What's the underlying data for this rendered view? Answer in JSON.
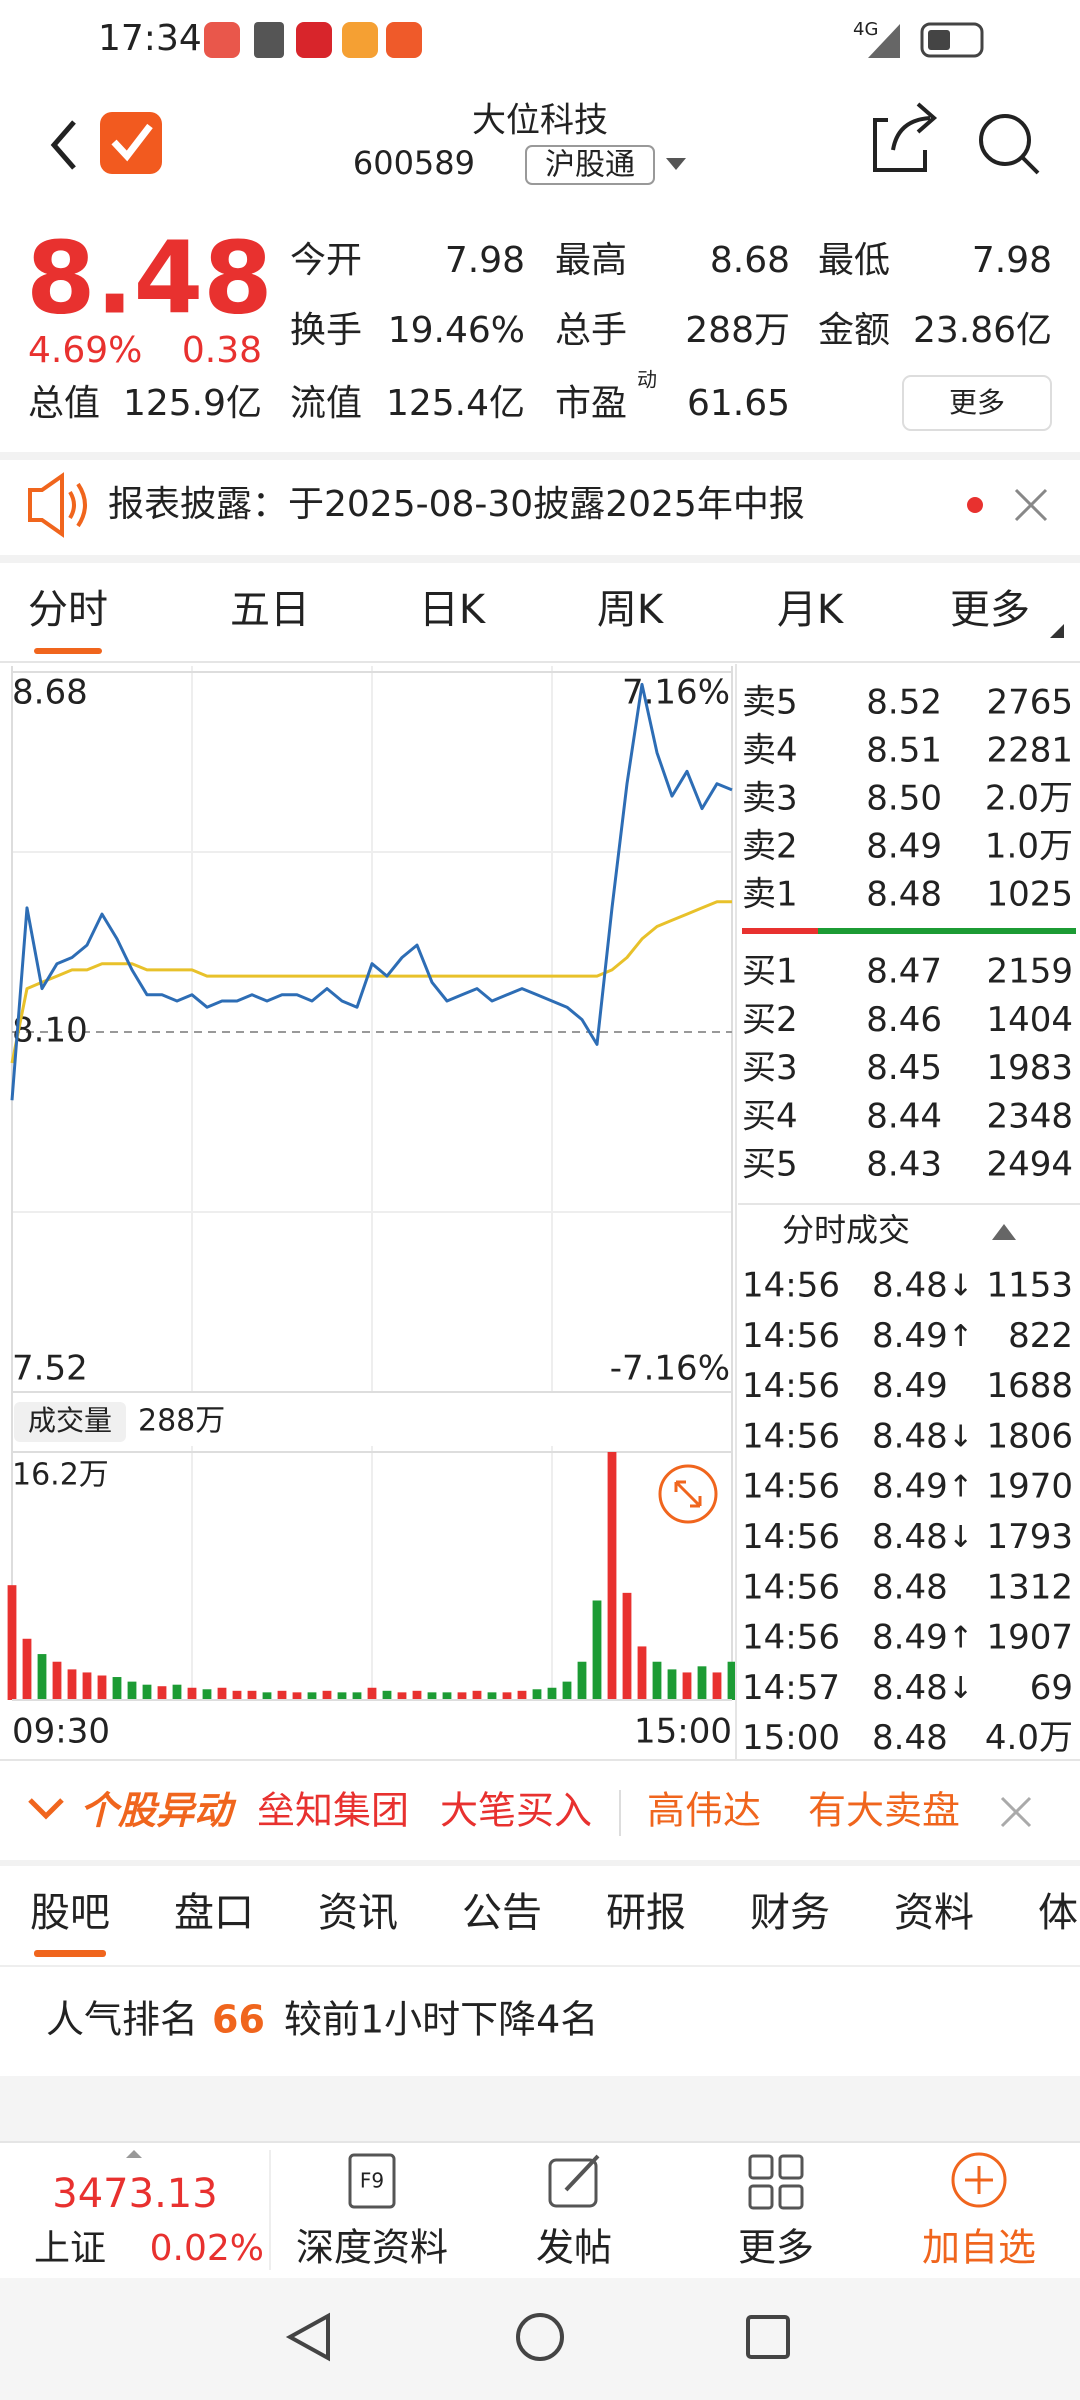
{
  "status": {
    "time": "17:34",
    "network": "4G"
  },
  "header": {
    "title": "大位科技",
    "code": "600589",
    "tag": "沪股通"
  },
  "quote": {
    "price": "8.48",
    "change_pct": "4.69%",
    "change": "0.38",
    "stats": [
      {
        "label": "今开",
        "value": "7.98",
        "color": "#1c9b34"
      },
      {
        "label": "最高",
        "value": "8.68",
        "color": "#e8312f"
      },
      {
        "label": "最低",
        "value": "7.98",
        "color": "#1c9b34"
      },
      {
        "label": "换手",
        "value": "19.46%",
        "color": "#222222"
      },
      {
        "label": "总手",
        "value": "288万",
        "color": "#222222"
      },
      {
        "label": "金额",
        "value": "23.86亿",
        "color": "#222222"
      },
      {
        "label": "总值",
        "value": "125.9亿",
        "color": "#222222"
      },
      {
        "label": "流值",
        "value": "125.4亿",
        "color": "#222222"
      },
      {
        "label": "市盈",
        "sup": "动",
        "value": "61.65",
        "color": "#222222"
      }
    ],
    "more": "更多"
  },
  "notice": {
    "text": "报表披露：于2025-08-30披露2025年中报"
  },
  "tabs": {
    "items": [
      "分时",
      "五日",
      "日K",
      "周K",
      "月K",
      "更多"
    ],
    "active": 0
  },
  "chart": {
    "type": "line",
    "ylim": [
      7.52,
      8.68
    ],
    "yticks": [
      8.68,
      {
        "value": 8.1,
        "label": "8.10"
      },
      7.52
    ],
    "pct_labels": [
      "7.16%",
      "-7.16%"
    ],
    "price_color": "#2d6db5",
    "avg_color": "#e8c12a",
    "price_values": [
      7.99,
      8.3,
      8.17,
      8.21,
      8.22,
      8.24,
      8.29,
      8.25,
      8.2,
      8.16,
      8.16,
      8.15,
      8.16,
      8.14,
      8.15,
      8.15,
      8.16,
      8.15,
      8.16,
      8.16,
      8.15,
      8.17,
      8.15,
      8.14,
      8.21,
      8.19,
      8.22,
      8.24,
      8.18,
      8.15,
      8.16,
      8.17,
      8.15,
      8.16,
      8.17,
      8.16,
      8.15,
      8.14,
      8.12,
      8.08,
      8.3,
      8.5,
      8.66,
      8.55,
      8.48,
      8.52,
      8.46,
      8.5,
      8.49
    ],
    "avg_values": [
      8.05,
      8.17,
      8.18,
      8.19,
      8.2,
      8.2,
      8.21,
      8.21,
      8.21,
      8.2,
      8.2,
      8.2,
      8.2,
      8.19,
      8.19,
      8.19,
      8.19,
      8.19,
      8.19,
      8.19,
      8.19,
      8.19,
      8.19,
      8.19,
      8.19,
      8.19,
      8.19,
      8.19,
      8.19,
      8.19,
      8.19,
      8.19,
      8.19,
      8.19,
      8.19,
      8.19,
      8.19,
      8.19,
      8.19,
      8.19,
      8.2,
      8.22,
      8.25,
      8.27,
      8.28,
      8.29,
      8.3,
      8.31,
      8.31
    ],
    "volume_title": "成交量",
    "volume_total": "288万",
    "volume_ylim": [
      0,
      16.2
    ],
    "volume_yticks": [
      {
        "value": 16.2,
        "label": "16.2万"
      }
    ],
    "volume_values": [
      7.5,
      4.0,
      3.0,
      2.5,
      2.0,
      1.8,
      1.6,
      1.5,
      1.2,
      1.0,
      0.9,
      1.0,
      0.8,
      0.7,
      0.8,
      0.6,
      0.6,
      0.5,
      0.6,
      0.5,
      0.5,
      0.6,
      0.5,
      0.5,
      0.8,
      0.6,
      0.5,
      0.6,
      0.5,
      0.5,
      0.5,
      0.6,
      0.5,
      0.5,
      0.6,
      0.7,
      0.8,
      1.2,
      2.5,
      6.5,
      16.2,
      7.0,
      3.5,
      2.5,
      2.0,
      1.8,
      2.2,
      1.8,
      2.5
    ],
    "x_labels": [
      "09:30",
      "15:00"
    ]
  },
  "order_book": {
    "asks": [
      {
        "label": "卖5",
        "price": "8.52",
        "volume": "2765"
      },
      {
        "label": "卖4",
        "price": "8.51",
        "volume": "2281"
      },
      {
        "label": "卖3",
        "price": "8.50",
        "volume": "2.0万"
      },
      {
        "label": "卖2",
        "price": "8.49",
        "volume": "1.0万"
      },
      {
        "label": "卖1",
        "price": "8.48",
        "volume": "1025"
      }
    ],
    "bids": [
      {
        "label": "买1",
        "price": "8.47",
        "volume": "2159"
      },
      {
        "label": "买2",
        "price": "8.46",
        "volume": "1404"
      },
      {
        "label": "买3",
        "price": "8.45",
        "volume": "1983"
      },
      {
        "label": "买4",
        "price": "8.44",
        "volume": "2348"
      },
      {
        "label": "买5",
        "price": "8.43",
        "volume": "2494"
      }
    ]
  },
  "trades": {
    "title": "分时成交",
    "rows": [
      {
        "time": "14:56",
        "price": "8.48",
        "dir": "↓",
        "volume": "1153",
        "color": "#1c9b34"
      },
      {
        "time": "14:56",
        "price": "8.49",
        "dir": "↑",
        "volume": "822",
        "color": "#e8312f"
      },
      {
        "time": "14:56",
        "price": "8.49",
        "volume": "1688",
        "color": "#e8312f"
      },
      {
        "time": "14:56",
        "price": "8.48",
        "dir": "↓",
        "volume": "1806",
        "color": "#1c9b34"
      },
      {
        "time": "14:56",
        "price": "8.49",
        "dir": "↑",
        "volume": "1970",
        "color": "#e8312f"
      },
      {
        "time": "14:56",
        "price": "8.48",
        "dir": "↓",
        "volume": "1793",
        "color": "#1c9b34"
      },
      {
        "time": "14:56",
        "price": "8.48",
        "volume": "1312",
        "color": "#1c9b34"
      },
      {
        "time": "14:56",
        "price": "8.49",
        "dir": "↑",
        "volume": "1907",
        "color": "#e8312f"
      },
      {
        "time": "14:57",
        "price": "8.48",
        "dir": "↓",
        "volume": "69",
        "color": "#1c9b34"
      },
      {
        "time": "15:00",
        "price": "8.48",
        "volume": "4.0万",
        "color": "#1c9b34"
      }
    ]
  },
  "alert": {
    "label": "个股异动",
    "items": [
      "垒知集团",
      "大笔买入",
      "高伟达",
      "有大卖盘"
    ]
  },
  "section_tabs": {
    "items": [
      "股吧",
      "盘口",
      "资讯",
      "公告",
      "研报",
      "财务",
      "资料",
      "体"
    ],
    "active": 0
  },
  "rank": {
    "label": "人气排名",
    "value": "66",
    "text": "较前1小时下降4名"
  },
  "bottom_bar": {
    "index_value": "3473.13",
    "index_name": "上证",
    "index_change": "0.02%",
    "actions": [
      "深度资料",
      "发帖",
      "更多",
      "加自选"
    ]
  }
}
